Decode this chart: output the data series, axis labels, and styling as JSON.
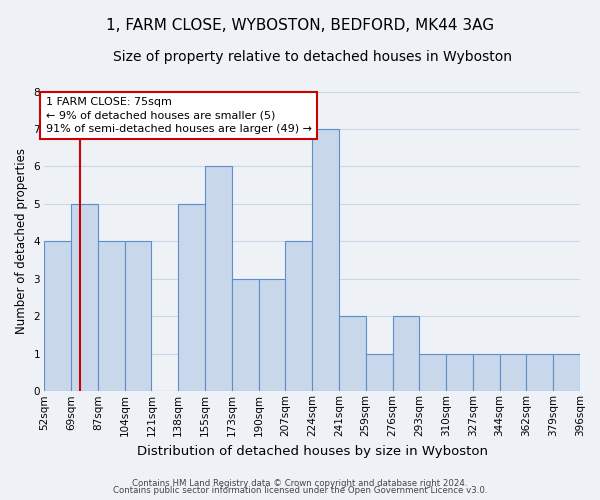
{
  "title": "1, FARM CLOSE, WYBOSTON, BEDFORD, MK44 3AG",
  "subtitle": "Size of property relative to detached houses in Wyboston",
  "xlabel": "Distribution of detached houses by size in Wyboston",
  "ylabel": "Number of detached properties",
  "footer_line1": "Contains HM Land Registry data © Crown copyright and database right 2024.",
  "footer_line2": "Contains public sector information licensed under the Open Government Licence v3.0.",
  "bin_labels": [
    "52sqm",
    "69sqm",
    "87sqm",
    "104sqm",
    "121sqm",
    "138sqm",
    "155sqm",
    "173sqm",
    "190sqm",
    "207sqm",
    "224sqm",
    "241sqm",
    "259sqm",
    "276sqm",
    "293sqm",
    "310sqm",
    "327sqm",
    "344sqm",
    "362sqm",
    "379sqm",
    "396sqm"
  ],
  "bar_values": [
    4,
    5,
    4,
    4,
    0,
    5,
    6,
    3,
    3,
    4,
    7,
    2,
    1,
    2,
    1,
    1,
    1,
    1,
    1,
    1
  ],
  "bin_edges_numeric": [
    52,
    69,
    87,
    104,
    121,
    138,
    155,
    173,
    190,
    207,
    224,
    241,
    259,
    276,
    293,
    310,
    327,
    344,
    362,
    379,
    396
  ],
  "bar_color": "#c8d8ea",
  "bar_edge_color": "#5b8fc9",
  "grid_color": "#c8d8ea",
  "background_color": "#eef2f7",
  "ylim": [
    0,
    8
  ],
  "yticks": [
    0,
    1,
    2,
    3,
    4,
    5,
    6,
    7,
    8
  ],
  "property_value": 75,
  "vline_color": "#cc0000",
  "annotation_text": "1 FARM CLOSE: 75sqm\n← 9% of detached houses are smaller (5)\n91% of semi-detached houses are larger (49) →",
  "annotation_box_color": "#ffffff",
  "annotation_box_edge_color": "#cc0000",
  "title_fontsize": 11,
  "subtitle_fontsize": 10,
  "xlabel_fontsize": 9.5,
  "ylabel_fontsize": 8.5,
  "tick_fontsize": 7.5,
  "annotation_fontsize": 8
}
